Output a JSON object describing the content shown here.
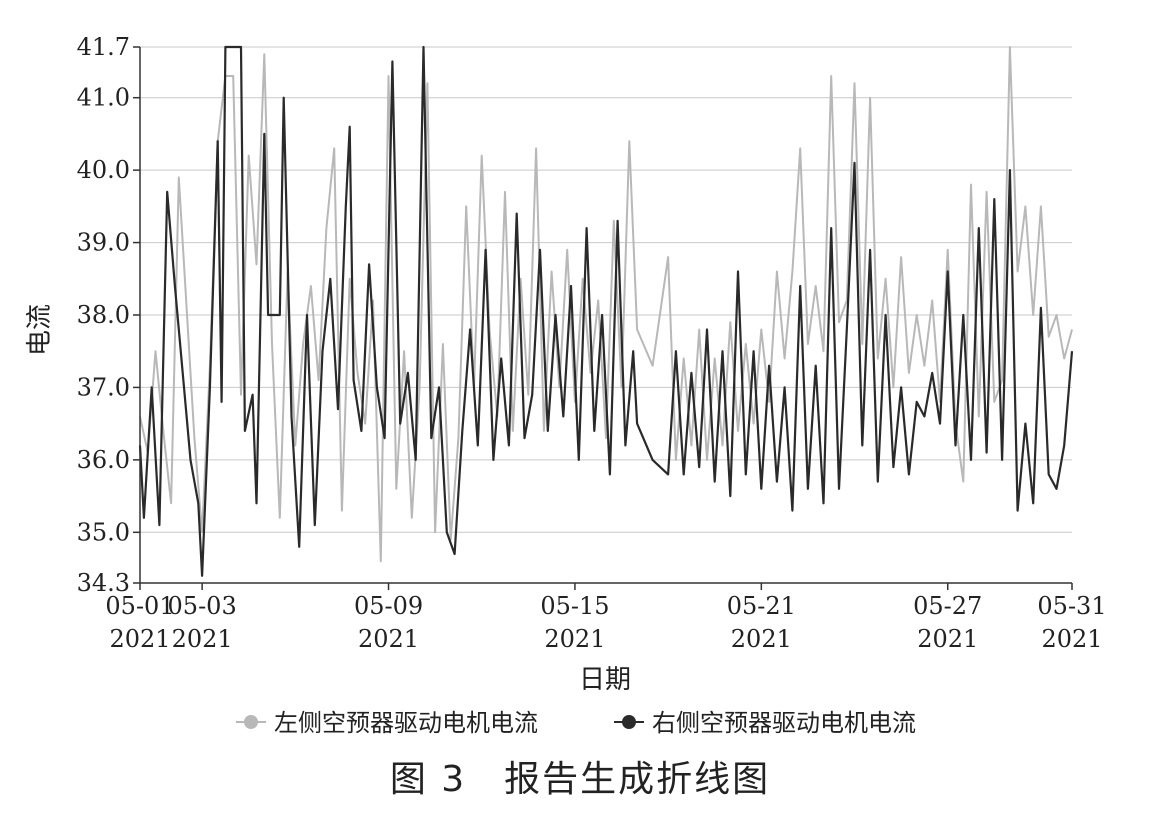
{
  "chart_data": {
    "type": "line",
    "title": "",
    "caption": "图 3　报告生成折线图",
    "xlabel": "日期",
    "ylabel": "电流",
    "x_range": [
      "2021-05-01",
      "2021-05-31"
    ],
    "ylim": [
      34.3,
      41.7
    ],
    "y_ticks": [
      "34.3",
      "35.0",
      "36.0",
      "37.0",
      "38.0",
      "39.0",
      "40.0",
      "41.0",
      "41.7"
    ],
    "x_ticks": [
      {
        "date": "2021-05-01",
        "label_top": "05-01",
        "label_bottom": "2021"
      },
      {
        "date": "2021-05-03",
        "label_top": "05-03",
        "label_bottom": "2021"
      },
      {
        "date": "2021-05-09",
        "label_top": "05-09",
        "label_bottom": "2021"
      },
      {
        "date": "2021-05-15",
        "label_top": "05-15",
        "label_bottom": "2021"
      },
      {
        "date": "2021-05-21",
        "label_top": "05-21",
        "label_bottom": "2021"
      },
      {
        "date": "2021-05-27",
        "label_top": "05-27",
        "label_bottom": "2021"
      },
      {
        "date": "2021-05-31",
        "label_top": "05-31",
        "label_bottom": "2021"
      }
    ],
    "grid": "horizontal",
    "legend_position": "bottom",
    "series": [
      {
        "name": "左侧空预器驱动电机电流",
        "color": "#b8b8b8",
        "points": [
          [
            "2021-05-01 00:00",
            36.6
          ],
          [
            "2021-05-01 06:00",
            36.1
          ],
          [
            "2021-05-01 12:00",
            37.5
          ],
          [
            "2021-05-01 18:00",
            36.4
          ],
          [
            "2021-05-02 00:00",
            35.4
          ],
          [
            "2021-05-02 06:00",
            39.9
          ],
          [
            "2021-05-02 12:00",
            38.1
          ],
          [
            "2021-05-02 18:00",
            36.3
          ],
          [
            "2021-05-03 00:00",
            35.0
          ],
          [
            "2021-05-03 06:00",
            37.3
          ],
          [
            "2021-05-03 12:00",
            40.4
          ],
          [
            "2021-05-03 18:00",
            41.3
          ],
          [
            "2021-05-04 00:00",
            41.3
          ],
          [
            "2021-05-04 06:00",
            36.9
          ],
          [
            "2021-05-04 12:00",
            40.2
          ],
          [
            "2021-05-04 18:00",
            38.7
          ],
          [
            "2021-05-05 00:00",
            41.6
          ],
          [
            "2021-05-05 06:00",
            37.6
          ],
          [
            "2021-05-05 12:00",
            35.2
          ],
          [
            "2021-05-05 18:00",
            38.6
          ],
          [
            "2021-05-06 00:00",
            36.2
          ],
          [
            "2021-05-06 06:00",
            37.6
          ],
          [
            "2021-05-06 12:00",
            38.4
          ],
          [
            "2021-05-06 18:00",
            37.1
          ],
          [
            "2021-05-07 00:00",
            39.2
          ],
          [
            "2021-05-07 06:00",
            40.3
          ],
          [
            "2021-05-07 12:00",
            35.3
          ],
          [
            "2021-05-07 18:00",
            38.5
          ],
          [
            "2021-05-08 00:00",
            37.2
          ],
          [
            "2021-05-08 06:00",
            36.5
          ],
          [
            "2021-05-08 12:00",
            38.2
          ],
          [
            "2021-05-08 18:00",
            34.6
          ],
          [
            "2021-05-09 00:00",
            41.3
          ],
          [
            "2021-05-09 06:00",
            35.6
          ],
          [
            "2021-05-09 12:00",
            37.5
          ],
          [
            "2021-05-09 18:00",
            35.2
          ],
          [
            "2021-05-10 00:00",
            37.0
          ],
          [
            "2021-05-10 06:00",
            41.2
          ],
          [
            "2021-05-10 12:00",
            35.0
          ],
          [
            "2021-05-10 18:00",
            37.6
          ],
          [
            "2021-05-11 00:00",
            34.9
          ],
          [
            "2021-05-11 06:00",
            36.3
          ],
          [
            "2021-05-11 12:00",
            39.5
          ],
          [
            "2021-05-11 18:00",
            37.0
          ],
          [
            "2021-05-12 00:00",
            40.2
          ],
          [
            "2021-05-12 06:00",
            37.8
          ],
          [
            "2021-05-12 12:00",
            36.6
          ],
          [
            "2021-05-12 18:00",
            39.7
          ],
          [
            "2021-05-13 00:00",
            36.4
          ],
          [
            "2021-05-13 06:00",
            38.5
          ],
          [
            "2021-05-13 12:00",
            36.9
          ],
          [
            "2021-05-13 18:00",
            40.3
          ],
          [
            "2021-05-14 00:00",
            36.4
          ],
          [
            "2021-05-14 06:00",
            38.6
          ],
          [
            "2021-05-14 12:00",
            37.0
          ],
          [
            "2021-05-14 18:00",
            38.9
          ],
          [
            "2021-05-15 00:00",
            36.8
          ],
          [
            "2021-05-15 06:00",
            38.5
          ],
          [
            "2021-05-15 12:00",
            37.2
          ],
          [
            "2021-05-15 18:00",
            38.2
          ],
          [
            "2021-05-16 00:00",
            36.3
          ],
          [
            "2021-05-16 06:00",
            39.3
          ],
          [
            "2021-05-16 12:00",
            37.0
          ],
          [
            "2021-05-16 18:00",
            40.4
          ],
          [
            "2021-05-17 00:00",
            37.8
          ],
          [
            "2021-05-17 12:00",
            37.3
          ],
          [
            "2021-05-18 00:00",
            38.8
          ],
          [
            "2021-05-18 06:00",
            36.0
          ],
          [
            "2021-05-18 12:00",
            37.4
          ],
          [
            "2021-05-18 18:00",
            36.2
          ],
          [
            "2021-05-19 00:00",
            37.8
          ],
          [
            "2021-05-19 06:00",
            36.0
          ],
          [
            "2021-05-19 12:00",
            37.4
          ],
          [
            "2021-05-19 18:00",
            36.2
          ],
          [
            "2021-05-20 00:00",
            37.9
          ],
          [
            "2021-05-20 06:00",
            36.4
          ],
          [
            "2021-05-20 12:00",
            37.6
          ],
          [
            "2021-05-20 18:00",
            36.5
          ],
          [
            "2021-05-21 00:00",
            37.8
          ],
          [
            "2021-05-21 06:00",
            36.8
          ],
          [
            "2021-05-21 12:00",
            38.6
          ],
          [
            "2021-05-21 18:00",
            37.4
          ],
          [
            "2021-05-22 00:00",
            38.6
          ],
          [
            "2021-05-22 06:00",
            40.3
          ],
          [
            "2021-05-22 12:00",
            37.6
          ],
          [
            "2021-05-22 18:00",
            38.4
          ],
          [
            "2021-05-23 00:00",
            37.5
          ],
          [
            "2021-05-23 06:00",
            41.3
          ],
          [
            "2021-05-23 12:00",
            37.9
          ],
          [
            "2021-05-23 18:00",
            38.2
          ],
          [
            "2021-05-24 00:00",
            41.2
          ],
          [
            "2021-05-24 06:00",
            37.6
          ],
          [
            "2021-05-24 12:00",
            41.0
          ],
          [
            "2021-05-24 18:00",
            37.4
          ],
          [
            "2021-05-25 00:00",
            38.5
          ],
          [
            "2021-05-25 06:00",
            37.0
          ],
          [
            "2021-05-25 12:00",
            38.8
          ],
          [
            "2021-05-25 18:00",
            37.2
          ],
          [
            "2021-05-26 00:00",
            38.0
          ],
          [
            "2021-05-26 06:00",
            37.3
          ],
          [
            "2021-05-26 12:00",
            38.2
          ],
          [
            "2021-05-26 18:00",
            36.8
          ],
          [
            "2021-05-27 00:00",
            38.9
          ],
          [
            "2021-05-27 06:00",
            36.5
          ],
          [
            "2021-05-27 12:00",
            35.7
          ],
          [
            "2021-05-27 18:00",
            39.8
          ],
          [
            "2021-05-28 00:00",
            36.6
          ],
          [
            "2021-05-28 06:00",
            39.7
          ],
          [
            "2021-05-28 12:00",
            36.8
          ],
          [
            "2021-05-28 18:00",
            37.1
          ],
          [
            "2021-05-29 00:00",
            41.7
          ],
          [
            "2021-05-29 06:00",
            38.6
          ],
          [
            "2021-05-29 12:00",
            39.5
          ],
          [
            "2021-05-29 18:00",
            38.0
          ],
          [
            "2021-05-30 00:00",
            39.5
          ],
          [
            "2021-05-30 06:00",
            37.7
          ],
          [
            "2021-05-30 12:00",
            38.0
          ],
          [
            "2021-05-30 18:00",
            37.4
          ],
          [
            "2021-05-31 00:00",
            37.8
          ]
        ]
      },
      {
        "name": "右侧空预器驱动电机电流",
        "color": "#2a2a2a",
        "points": [
          [
            "2021-05-01 00:00",
            36.2
          ],
          [
            "2021-05-01 03:00",
            35.2
          ],
          [
            "2021-05-01 09:00",
            37.0
          ],
          [
            "2021-05-01 15:00",
            35.1
          ],
          [
            "2021-05-01 21:00",
            39.7
          ],
          [
            "2021-05-02 03:00",
            38.4
          ],
          [
            "2021-05-02 09:00",
            37.2
          ],
          [
            "2021-05-02 15:00",
            36.0
          ],
          [
            "2021-05-02 21:00",
            35.4
          ],
          [
            "2021-05-03 00:00",
            34.4
          ],
          [
            "2021-05-03 06:00",
            37.0
          ],
          [
            "2021-05-03 12:00",
            40.4
          ],
          [
            "2021-05-03 15:00",
            36.8
          ],
          [
            "2021-05-03 18:00",
            41.7
          ],
          [
            "2021-05-04 06:00",
            41.7
          ],
          [
            "2021-05-04 09:00",
            36.4
          ],
          [
            "2021-05-04 15:00",
            36.9
          ],
          [
            "2021-05-04 18:00",
            35.4
          ],
          [
            "2021-05-05 00:00",
            40.5
          ],
          [
            "2021-05-05 03:00",
            38.0
          ],
          [
            "2021-05-05 12:00",
            38.0
          ],
          [
            "2021-05-05 15:00",
            41.0
          ],
          [
            "2021-05-05 21:00",
            36.6
          ],
          [
            "2021-05-06 03:00",
            34.8
          ],
          [
            "2021-05-06 09:00",
            38.0
          ],
          [
            "2021-05-06 15:00",
            35.1
          ],
          [
            "2021-05-06 21:00",
            37.5
          ],
          [
            "2021-05-07 03:00",
            38.5
          ],
          [
            "2021-05-07 09:00",
            36.7
          ],
          [
            "2021-05-07 15:00",
            39.5
          ],
          [
            "2021-05-07 18:00",
            40.6
          ],
          [
            "2021-05-07 21:00",
            37.1
          ],
          [
            "2021-05-08 03:00",
            36.4
          ],
          [
            "2021-05-08 09:00",
            38.7
          ],
          [
            "2021-05-08 15:00",
            37.0
          ],
          [
            "2021-05-08 21:00",
            36.3
          ],
          [
            "2021-05-09 03:00",
            41.5
          ],
          [
            "2021-05-09 09:00",
            36.5
          ],
          [
            "2021-05-09 15:00",
            37.2
          ],
          [
            "2021-05-09 21:00",
            36.0
          ],
          [
            "2021-05-10 03:00",
            41.7
          ],
          [
            "2021-05-10 09:00",
            36.3
          ],
          [
            "2021-05-10 15:00",
            37.0
          ],
          [
            "2021-05-10 21:00",
            35.0
          ],
          [
            "2021-05-11 03:00",
            34.7
          ],
          [
            "2021-05-11 09:00",
            36.4
          ],
          [
            "2021-05-11 15:00",
            37.8
          ],
          [
            "2021-05-11 21:00",
            36.2
          ],
          [
            "2021-05-12 03:00",
            38.9
          ],
          [
            "2021-05-12 09:00",
            36.0
          ],
          [
            "2021-05-12 15:00",
            37.4
          ],
          [
            "2021-05-12 21:00",
            36.2
          ],
          [
            "2021-05-13 03:00",
            39.4
          ],
          [
            "2021-05-13 09:00",
            36.3
          ],
          [
            "2021-05-13 15:00",
            36.9
          ],
          [
            "2021-05-13 21:00",
            38.9
          ],
          [
            "2021-05-14 03:00",
            36.4
          ],
          [
            "2021-05-14 09:00",
            38.0
          ],
          [
            "2021-05-14 15:00",
            36.6
          ],
          [
            "2021-05-14 21:00",
            38.4
          ],
          [
            "2021-05-15 03:00",
            36.0
          ],
          [
            "2021-05-15 09:00",
            39.2
          ],
          [
            "2021-05-15 15:00",
            36.4
          ],
          [
            "2021-05-15 21:00",
            38.0
          ],
          [
            "2021-05-16 03:00",
            35.8
          ],
          [
            "2021-05-16 09:00",
            39.3
          ],
          [
            "2021-05-16 15:00",
            36.2
          ],
          [
            "2021-05-16 21:00",
            37.5
          ],
          [
            "2021-05-17 00:00",
            36.5
          ],
          [
            "2021-05-17 12:00",
            36.0
          ],
          [
            "2021-05-18 00:00",
            35.8
          ],
          [
            "2021-05-18 06:00",
            37.5
          ],
          [
            "2021-05-18 12:00",
            35.8
          ],
          [
            "2021-05-18 18:00",
            37.2
          ],
          [
            "2021-05-19 00:00",
            35.9
          ],
          [
            "2021-05-19 06:00",
            37.8
          ],
          [
            "2021-05-19 12:00",
            35.7
          ],
          [
            "2021-05-19 18:00",
            37.5
          ],
          [
            "2021-05-20 00:00",
            35.5
          ],
          [
            "2021-05-20 06:00",
            38.6
          ],
          [
            "2021-05-20 12:00",
            35.8
          ],
          [
            "2021-05-20 18:00",
            37.5
          ],
          [
            "2021-05-21 00:00",
            35.6
          ],
          [
            "2021-05-21 06:00",
            37.3
          ],
          [
            "2021-05-21 12:00",
            35.7
          ],
          [
            "2021-05-21 18:00",
            37.0
          ],
          [
            "2021-05-22 00:00",
            35.3
          ],
          [
            "2021-05-22 06:00",
            38.4
          ],
          [
            "2021-05-22 12:00",
            35.6
          ],
          [
            "2021-05-22 18:00",
            37.3
          ],
          [
            "2021-05-23 00:00",
            35.4
          ],
          [
            "2021-05-23 06:00",
            39.2
          ],
          [
            "2021-05-23 12:00",
            35.6
          ],
          [
            "2021-05-23 18:00",
            37.8
          ],
          [
            "2021-05-24 00:00",
            40.1
          ],
          [
            "2021-05-24 06:00",
            36.2
          ],
          [
            "2021-05-24 12:00",
            38.9
          ],
          [
            "2021-05-24 18:00",
            35.7
          ],
          [
            "2021-05-25 00:00",
            38.0
          ],
          [
            "2021-05-25 06:00",
            35.9
          ],
          [
            "2021-05-25 12:00",
            37.0
          ],
          [
            "2021-05-25 18:00",
            35.8
          ],
          [
            "2021-05-26 00:00",
            36.8
          ],
          [
            "2021-05-26 06:00",
            36.6
          ],
          [
            "2021-05-26 12:00",
            37.2
          ],
          [
            "2021-05-26 18:00",
            36.5
          ],
          [
            "2021-05-27 00:00",
            38.6
          ],
          [
            "2021-05-27 06:00",
            36.2
          ],
          [
            "2021-05-27 12:00",
            38.0
          ],
          [
            "2021-05-27 18:00",
            36.0
          ],
          [
            "2021-05-28 00:00",
            39.2
          ],
          [
            "2021-05-28 06:00",
            36.1
          ],
          [
            "2021-05-28 12:00",
            39.6
          ],
          [
            "2021-05-28 18:00",
            36.0
          ],
          [
            "2021-05-29 00:00",
            40.0
          ],
          [
            "2021-05-29 06:00",
            35.3
          ],
          [
            "2021-05-29 12:00",
            36.5
          ],
          [
            "2021-05-29 18:00",
            35.4
          ],
          [
            "2021-05-30 00:00",
            38.1
          ],
          [
            "2021-05-30 06:00",
            35.8
          ],
          [
            "2021-05-30 12:00",
            35.6
          ],
          [
            "2021-05-30 18:00",
            36.2
          ],
          [
            "2021-05-31 00:00",
            37.5
          ]
        ]
      }
    ]
  }
}
